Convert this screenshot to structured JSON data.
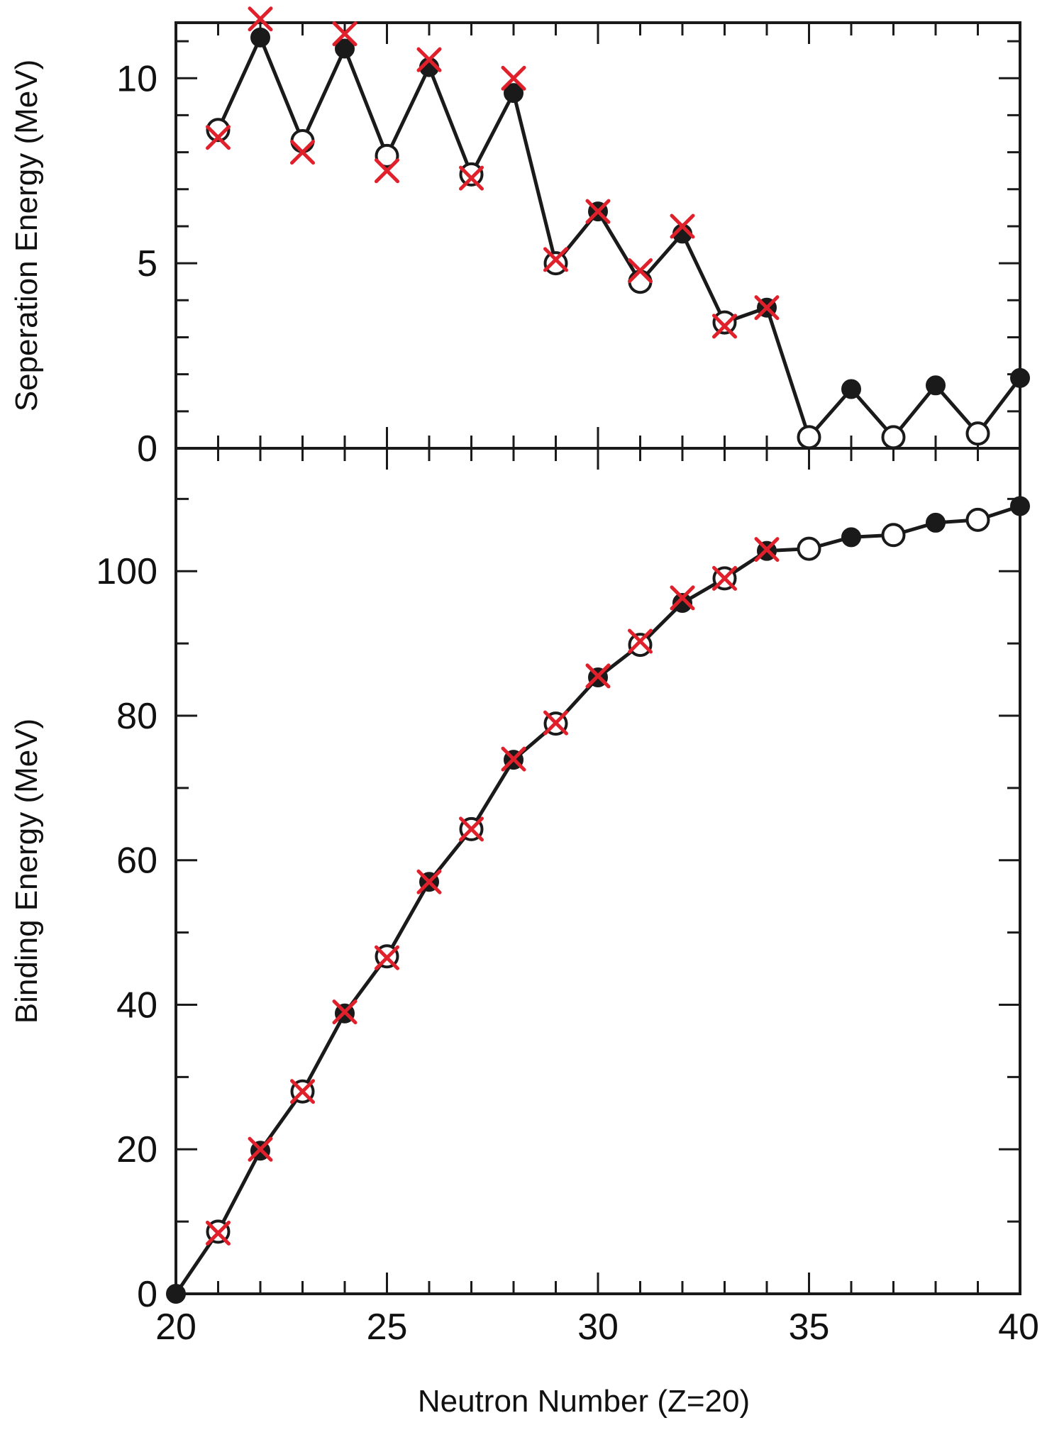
{
  "colors": {
    "line": "#1a1a1a",
    "marker": "#1a1a1a",
    "cross": "#e0202a",
    "background": "#ffffff"
  },
  "chart_data": [
    {
      "type": "line",
      "panel": "top",
      "title": "",
      "ylabel": "Seperation Energy (MeV)",
      "xlabel": "",
      "xlim": [
        20,
        40
      ],
      "ylim": [
        0,
        11.5
      ],
      "ytick_labels": [
        "0",
        "5",
        "10"
      ],
      "yticks": [
        0,
        5,
        10
      ],
      "series": [
        {
          "marker": "circle",
          "x": [
            21,
            22,
            23,
            24,
            25,
            26,
            27,
            28,
            29,
            30,
            31,
            32,
            33,
            34,
            35,
            36,
            37,
            38,
            39,
            40
          ],
          "y": [
            8.6,
            11.1,
            8.3,
            10.8,
            7.9,
            10.3,
            7.4,
            9.6,
            5.0,
            6.4,
            4.5,
            5.8,
            3.4,
            3.8,
            0.3,
            1.6,
            0.3,
            1.7,
            0.4,
            1.9
          ],
          "filled": [
            false,
            true,
            false,
            true,
            false,
            true,
            false,
            true,
            false,
            true,
            false,
            true,
            false,
            true,
            false,
            true,
            false,
            true,
            false,
            true
          ]
        },
        {
          "marker": "x",
          "x": [
            21,
            22,
            23,
            24,
            25,
            26,
            27,
            28,
            29,
            30,
            31,
            32,
            33,
            34
          ],
          "y": [
            8.4,
            11.6,
            8.0,
            11.2,
            7.5,
            10.5,
            7.3,
            10.0,
            5.1,
            6.4,
            4.8,
            6.0,
            3.3,
            3.8
          ]
        }
      ]
    },
    {
      "type": "line",
      "panel": "bottom",
      "title": "",
      "ylabel": "Binding Energy (MeV)",
      "xlabel": "Neutron Number (Z=20)",
      "xlim": [
        20,
        40
      ],
      "ylim": [
        0,
        117
      ],
      "xticks": [
        20,
        25,
        30,
        35,
        40
      ],
      "xtick_labels": [
        "20",
        "25",
        "30",
        "35",
        "40"
      ],
      "yticks": [
        0,
        20,
        40,
        60,
        80,
        100
      ],
      "ytick_labels": [
        "0",
        "20",
        "40",
        "60",
        "80",
        "100"
      ],
      "series": [
        {
          "marker": "circle",
          "x": [
            20,
            21,
            22,
            23,
            24,
            25,
            26,
            27,
            28,
            29,
            30,
            31,
            32,
            33,
            34,
            35,
            36,
            37,
            38,
            39,
            40
          ],
          "y": [
            0,
            8.6,
            19.8,
            28.0,
            38.8,
            46.7,
            57.0,
            64.3,
            73.9,
            78.9,
            85.3,
            89.8,
            95.6,
            99.0,
            102.8,
            103.1,
            104.7,
            105.0,
            106.7,
            107.1,
            109.0
          ],
          "filled": [
            true,
            false,
            true,
            false,
            true,
            false,
            true,
            false,
            true,
            false,
            true,
            false,
            true,
            false,
            true,
            false,
            true,
            false,
            true,
            false,
            true
          ]
        },
        {
          "marker": "x",
          "x": [
            21,
            22,
            23,
            24,
            25,
            26,
            27,
            28,
            29,
            30,
            31,
            32,
            33,
            34
          ],
          "y": [
            8.4,
            20.0,
            28.0,
            39.0,
            46.5,
            57.0,
            64.3,
            74.0,
            79.0,
            85.5,
            90.3,
            96.3,
            99.0,
            103.0
          ]
        }
      ]
    }
  ]
}
